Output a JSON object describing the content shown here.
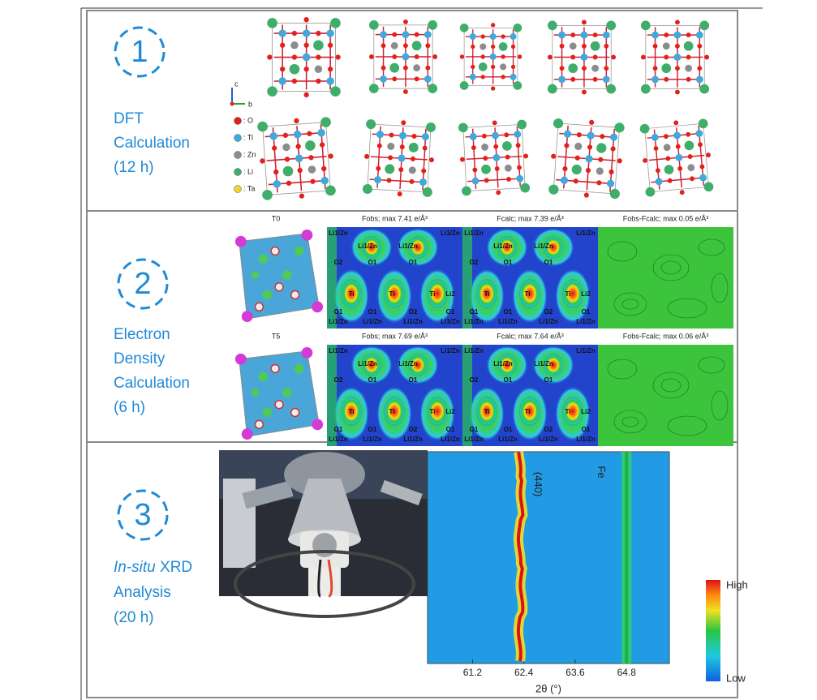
{
  "panels": [
    {
      "number": "1",
      "title_lines": [
        "DFT",
        "Calculation",
        "(12 h)"
      ],
      "axis_labels": [
        "c",
        "b"
      ],
      "legend": [
        {
          "label": ": O",
          "color": "#e3211c"
        },
        {
          "label": ": Ti",
          "color": "#3fa9dc"
        },
        {
          "label": ": Zn",
          "color": "#8c8c8c"
        },
        {
          "label": ": Li",
          "color": "#3fae6a"
        },
        {
          "label": ": Ta",
          "color": "#f2d230"
        }
      ]
    },
    {
      "number": "2",
      "title_lines": [
        "Electron",
        "Density",
        "Calculation",
        "(6 h)"
      ],
      "rows": [
        {
          "structure_label": "T0",
          "map_titles": [
            "Fobs; max 7.41 e/Å³",
            "Fcalc; max 7.39 e/Å³",
            "Fobs-Fcalc; max 0.05 e/Å³"
          ]
        },
        {
          "structure_label": "T5",
          "map_titles": [
            "Fobs; max 7.69 e/Å³",
            "Fcalc; max 7.64 e/Å³",
            "Fobs-Fcalc; max 0.06 e/Å³"
          ]
        }
      ],
      "map_labels": [
        "Li1/Zn",
        "Li1/Zn",
        "Li1/Zn",
        "Li1/Zn",
        "O2",
        "O1",
        "O1",
        "Ti",
        "Ti",
        "Ti",
        "Li2",
        "O1",
        "O1",
        "O2",
        "O1",
        "Li1/Zn",
        "Li1/Zn",
        "Li1/Zn",
        "Li1/Zn"
      ]
    },
    {
      "number": "3",
      "title_lines": [
        "In-situ",
        "XRD",
        "Analysis",
        "(20 h)"
      ],
      "xrd": {
        "xlim": [
          60.15,
          65.8
        ],
        "xticks": [
          61.2,
          62.4,
          63.6,
          64.8
        ],
        "xlabel": "2θ (°)",
        "peaks": [
          {
            "label": "(440)",
            "position": 62.3
          },
          {
            "label": "Fe",
            "position": 64.8
          }
        ],
        "colorbar": {
          "high": "High",
          "low": "Low"
        }
      }
    }
  ]
}
